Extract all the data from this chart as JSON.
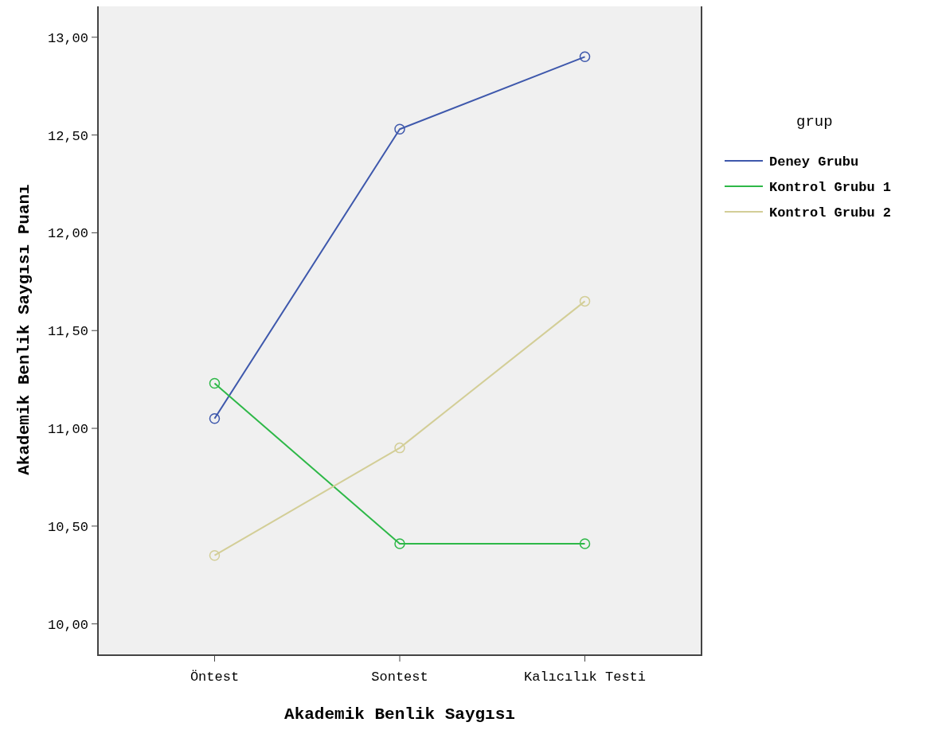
{
  "chart_data": {
    "type": "line",
    "xlabel": "Akademik Benlik Saygısı",
    "ylabel": "Akademik Benlik Saygısı Puanı",
    "legend_title": "grup",
    "categories": [
      "Öntest",
      "Sontest",
      "Kalıcılık Testi"
    ],
    "series": [
      {
        "name": "Deney Grubu",
        "color": "#3e58ac",
        "values": [
          11.05,
          12.53,
          12.9
        ]
      },
      {
        "name": "Kontrol Grubu 1",
        "color": "#2eb848",
        "values": [
          11.23,
          10.41,
          10.41
        ]
      },
      {
        "name": "Kontrol Grubu 2",
        "color": "#d3ce97",
        "values": [
          10.35,
          10.9,
          11.65
        ]
      }
    ],
    "ylim": [
      9.84,
      13.17
    ],
    "yticks": [
      {
        "value": 10,
        "label": "10,00"
      },
      {
        "value": 10.5,
        "label": "10,50"
      },
      {
        "value": 11,
        "label": "11,00"
      },
      {
        "value": 11.5,
        "label": "11,50"
      },
      {
        "value": 12,
        "label": "12,00"
      },
      {
        "value": 12.5,
        "label": "12,50"
      },
      {
        "value": 13,
        "label": "13,00"
      }
    ],
    "marker": "circle",
    "line_style": "solid",
    "legend": "right",
    "grid": false
  }
}
